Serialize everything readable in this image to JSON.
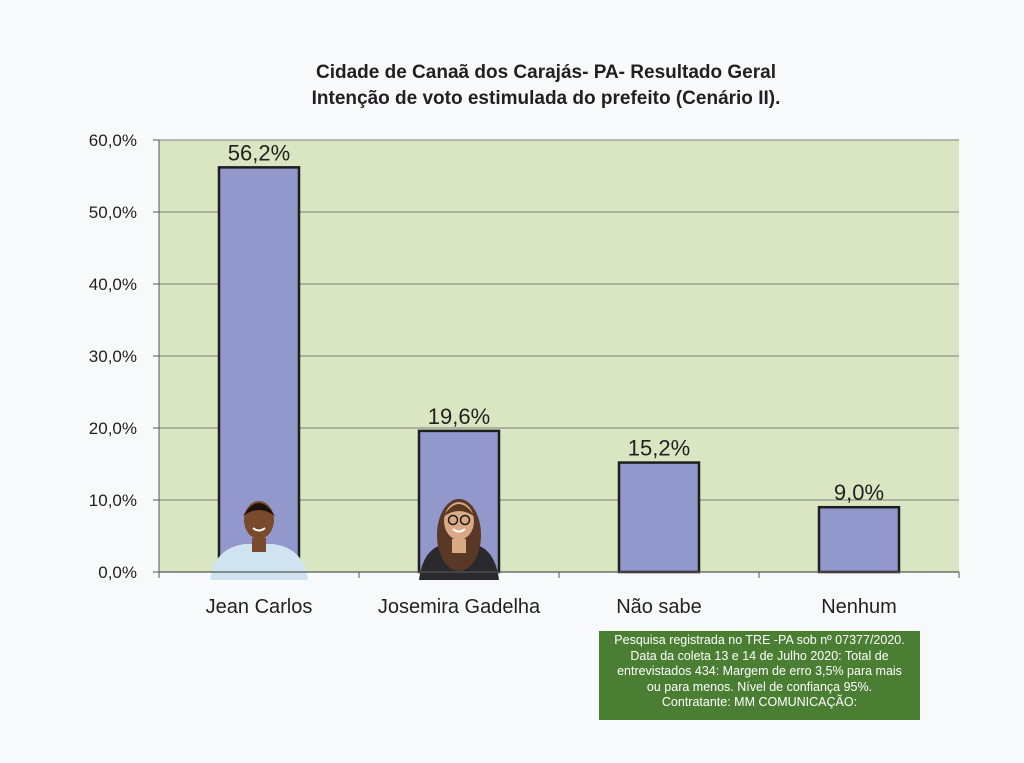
{
  "chart_data": {
    "type": "bar",
    "title": "Cidade de Canaã dos Carajás- PA- Resultado Geral",
    "subtitle": "Intenção de voto estimulada do prefeito (Cenário II).",
    "categories": [
      "Jean Carlos",
      "Josemira Gadelha",
      "Não sabe",
      "Nenhum"
    ],
    "values": [
      56.2,
      19.6,
      15.2,
      9.0
    ],
    "data_labels": [
      "56,2%",
      "19,6%",
      "15,2%",
      "9,0%"
    ],
    "ylim": [
      0,
      60
    ],
    "yticks": [
      0,
      10,
      20,
      30,
      40,
      50,
      60
    ],
    "ytick_labels": [
      "0,0%",
      "10,0%",
      "20,0%",
      "30,0%",
      "40,0%",
      "50,0%",
      "60,0%"
    ],
    "xlabel": "",
    "ylabel": "",
    "grid": true,
    "legend": "none",
    "colors": {
      "bar": "#9297cc",
      "bar_stroke": "#1e1e1e",
      "plot_background": "#dae6c1",
      "gridline": "#7f7f7f"
    }
  },
  "note": {
    "lines": [
      "Pesquisa registrada no TRE -PA sob nº 07377/2020.",
      "Data da coleta 13 e 14 de Julho 2020: Total de",
      "entrevistados 434: Margem de erro 3,5% para mais",
      "ou para menos. Nível de confiança 95%.",
      "Contratante: MM COMUNICAÇÃO:"
    ],
    "background": "#4a7f33"
  }
}
